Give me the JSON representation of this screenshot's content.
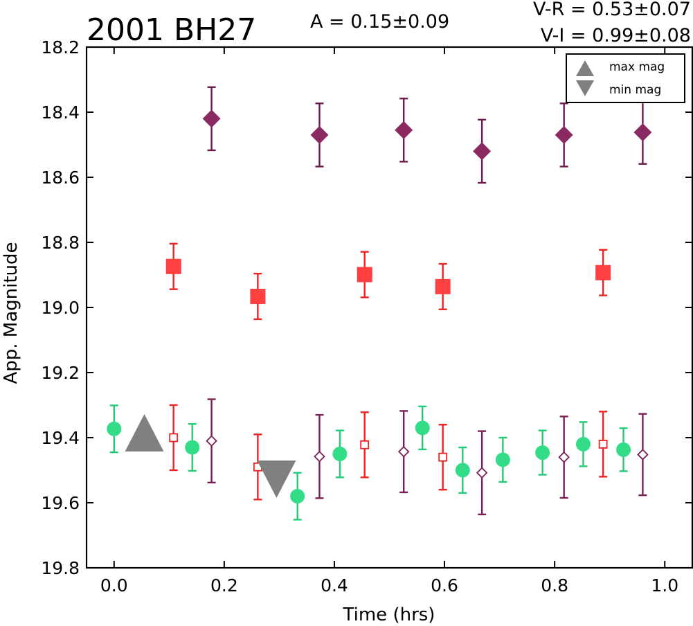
{
  "chart_data": {
    "type": "scatter",
    "title": "2001 BH27",
    "annotations": {
      "amplitude": "A  = 0.15±0.09",
      "v_r": "V-R = 0.53±0.07",
      "v_i": "V-I  = 0.99±0.08"
    },
    "xlabel": "Time (hrs)",
    "ylabel": "App. Magnitude",
    "xlim": [
      -0.05,
      1.05
    ],
    "ylim": [
      19.8,
      18.2
    ],
    "y_inverted": true,
    "x_ticks": [
      "0.0",
      "0.2",
      "0.4",
      "0.6",
      "0.8",
      "1.0"
    ],
    "y_ticks": [
      "18.2",
      "18.4",
      "18.6",
      "18.8",
      "19.0",
      "19.2",
      "19.4",
      "19.6",
      "19.8"
    ],
    "grid": false,
    "legend": {
      "position": "top-right",
      "entries": [
        {
          "label": "max mag",
          "marker": "triangle-up",
          "color": "#808080"
        },
        {
          "label": "min mag",
          "marker": "triangle-down",
          "color": "#808080"
        }
      ]
    },
    "series": [
      {
        "marker": "diamond-filled",
        "color": "#8b2a62",
        "error_color": "#6e1a4b",
        "points": [
          {
            "x": 0.177,
            "y": 18.42,
            "err": 0.097
          },
          {
            "x": 0.373,
            "y": 18.47,
            "err": 0.097
          },
          {
            "x": 0.526,
            "y": 18.455,
            "err": 0.097
          },
          {
            "x": 0.668,
            "y": 18.52,
            "err": 0.097
          },
          {
            "x": 0.817,
            "y": 18.47,
            "err": 0.097
          },
          {
            "x": 0.96,
            "y": 18.462,
            "err": 0.097
          }
        ]
      },
      {
        "marker": "square-filled",
        "color": "#ff4040",
        "error_color": "#ee2222",
        "points": [
          {
            "x": 0.108,
            "y": 18.874,
            "err": 0.07
          },
          {
            "x": 0.261,
            "y": 18.966,
            "err": 0.07
          },
          {
            "x": 0.455,
            "y": 18.899,
            "err": 0.07
          },
          {
            "x": 0.597,
            "y": 18.936,
            "err": 0.07
          },
          {
            "x": 0.888,
            "y": 18.893,
            "err": 0.07
          }
        ]
      },
      {
        "marker": "circle-filled",
        "color": "#33dd88",
        "error_color": "#22cc77",
        "points": [
          {
            "x": 0.0,
            "y": 19.373,
            "err": 0.072
          },
          {
            "x": 0.142,
            "y": 19.43,
            "err": 0.072
          },
          {
            "x": 0.333,
            "y": 19.58,
            "err": 0.072
          },
          {
            "x": 0.41,
            "y": 19.45,
            "err": 0.072
          },
          {
            "x": 0.56,
            "y": 19.37,
            "err": 0.066
          },
          {
            "x": 0.633,
            "y": 19.5,
            "err": 0.07
          },
          {
            "x": 0.706,
            "y": 19.468,
            "err": 0.068
          },
          {
            "x": 0.778,
            "y": 19.446,
            "err": 0.068
          },
          {
            "x": 0.852,
            "y": 19.42,
            "err": 0.068
          },
          {
            "x": 0.925,
            "y": 19.437,
            "err": 0.066
          }
        ]
      },
      {
        "marker": "square-open",
        "color": "#ee2222",
        "error_color": "#ee2222",
        "points": [
          {
            "x": 0.108,
            "y": 19.4,
            "err": 0.1
          },
          {
            "x": 0.261,
            "y": 19.49,
            "err": 0.1
          },
          {
            "x": 0.455,
            "y": 19.422,
            "err": 0.1
          },
          {
            "x": 0.597,
            "y": 19.46,
            "err": 0.1
          },
          {
            "x": 0.888,
            "y": 19.42,
            "err": 0.1
          }
        ]
      },
      {
        "marker": "diamond-open",
        "color": "#7a1f55",
        "error_color": "#7a1f55",
        "points": [
          {
            "x": 0.177,
            "y": 19.41,
            "err": 0.128
          },
          {
            "x": 0.373,
            "y": 19.458,
            "err": 0.128
          },
          {
            "x": 0.526,
            "y": 19.443,
            "err": 0.125
          },
          {
            "x": 0.668,
            "y": 19.508,
            "err": 0.128
          },
          {
            "x": 0.817,
            "y": 19.46,
            "err": 0.125
          },
          {
            "x": 0.96,
            "y": 19.452,
            "err": 0.125
          }
        ]
      }
    ],
    "extremes": [
      {
        "label": "max mag",
        "marker": "triangle-up",
        "x": 0.055,
        "y": 19.4,
        "color": "#808080"
      },
      {
        "label": "min mag",
        "marker": "triangle-down",
        "x": 0.295,
        "y": 19.5,
        "color": "#808080"
      }
    ]
  }
}
